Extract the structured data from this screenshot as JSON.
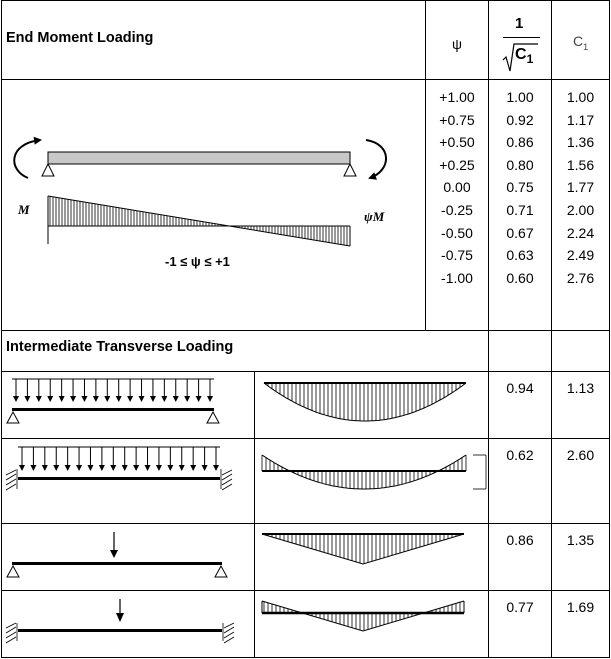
{
  "headers": {
    "end_moment": "End Moment Loading",
    "psi": "ψ",
    "inv_sqrt_one": "1",
    "inv_sqrt_c": "C",
    "inv_sqrt_sub": "1",
    "c1": "C",
    "c1_sub": "1",
    "intermediate": "Intermediate  Transverse Loading"
  },
  "diagram_labels": {
    "m_left": "M",
    "m_right_psi": "ψ",
    "m_right_m": "M",
    "range": "-1 ≤ ψ ≤ +1"
  },
  "end_moment_rows": [
    {
      "psi": "+1.00",
      "inv": "1.00",
      "c1": "1.00"
    },
    {
      "psi": "+0.75",
      "inv": "0.92",
      "c1": "1.17"
    },
    {
      "psi": "+0.50",
      "inv": "0.86",
      "c1": "1.36"
    },
    {
      "psi": "+0.25",
      "inv": "0.80",
      "c1": "1.56"
    },
    {
      "psi": "0.00",
      "inv": "0.75",
      "c1": "1.77"
    },
    {
      "psi": "-0.25",
      "inv": "0.71",
      "c1": "2.00"
    },
    {
      "psi": "-0.50",
      "inv": "0.67",
      "c1": "2.24"
    },
    {
      "psi": "-0.75",
      "inv": "0.63",
      "c1": "2.49"
    },
    {
      "psi": "-1.00",
      "inv": "0.60",
      "c1": "2.76"
    }
  ],
  "transverse_rows": [
    {
      "case": "udl-simply-supported",
      "inv": "0.94",
      "c1": "1.13"
    },
    {
      "case": "udl-fixed-ends",
      "inv": "0.62",
      "c1": "2.60"
    },
    {
      "case": "point-load-simply-supported",
      "inv": "0.86",
      "c1": "1.35"
    },
    {
      "case": "point-load-fixed-ends",
      "inv": "0.77",
      "c1": "1.69"
    }
  ]
}
